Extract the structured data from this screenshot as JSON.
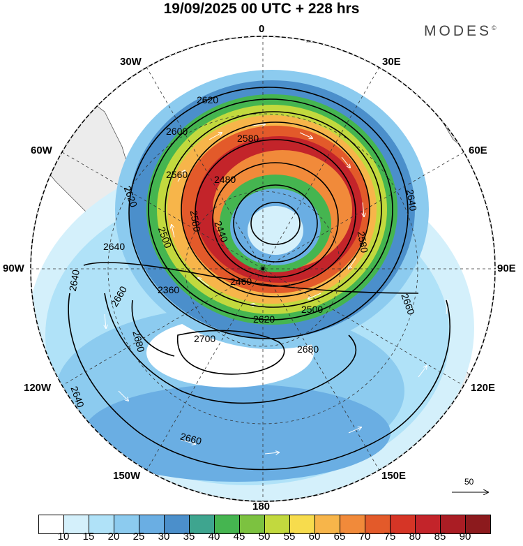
{
  "title": "19/09/2025  00 UTC  + 228 hrs",
  "brand": "MODES",
  "brand_mark": "©",
  "longitude_labels": {
    "top": "0",
    "bottom": "180",
    "left": "90W",
    "right": "90E",
    "w30": "30W",
    "e30": "30E",
    "w60": "60W",
    "e60": "60E",
    "w120": "120W",
    "e120": "120E",
    "w150": "150W",
    "e150": "150E"
  },
  "contour_labels": [
    "2620",
    "2600",
    "2580",
    "2560",
    "2480",
    "2620",
    "2580",
    "2500",
    "2440",
    "2640",
    "2640",
    "2660",
    "2360",
    "2460",
    "2620",
    "2500",
    "2680",
    "2700",
    "2680",
    "2640",
    "2660",
    "2640",
    "2660",
    "2580"
  ],
  "wind_vector_reference": "50",
  "colorbar": {
    "ticks": [
      "10",
      "15",
      "20",
      "25",
      "30",
      "35",
      "40",
      "45",
      "50",
      "55",
      "60",
      "65",
      "70",
      "75",
      "80",
      "85",
      "90"
    ],
    "colors": [
      "#ffffff",
      "#d4f0fb",
      "#b0e2f8",
      "#8ccbef",
      "#6aaee3",
      "#4b8fcb",
      "#3ea58f",
      "#45b550",
      "#7cc240",
      "#c2d93e",
      "#f7dc4d",
      "#f7b54a",
      "#f18a3a",
      "#e35a2a",
      "#d63526",
      "#c3242a",
      "#aa1d24",
      "#8c1a1d"
    ]
  }
}
